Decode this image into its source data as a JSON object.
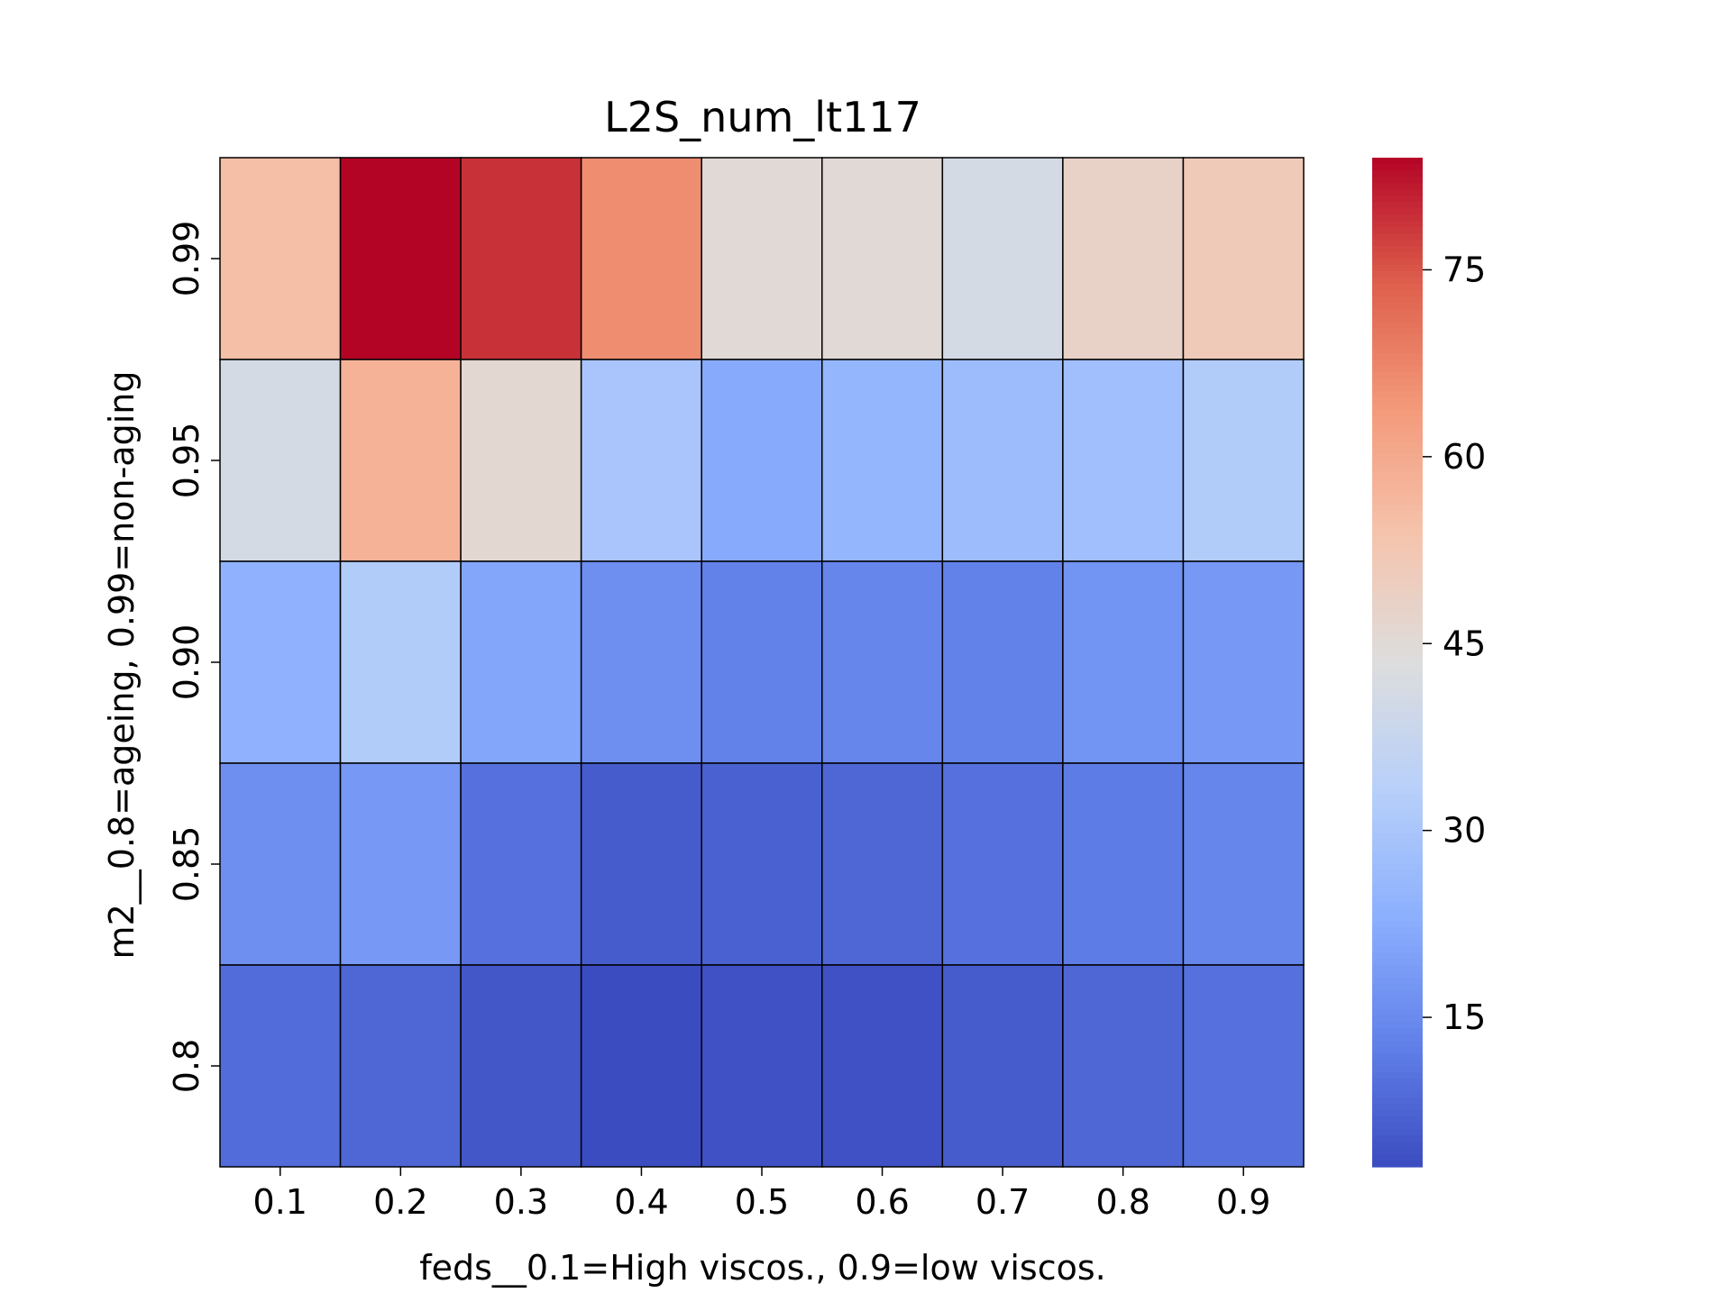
{
  "chart_data": {
    "type": "heatmap",
    "title": "L2S_num_lt117",
    "xlabel": "feds__0.1=High viscos., 0.9=low viscos.",
    "ylabel": "m2__0.8=ageing, 0.99=non-aging",
    "x": [
      "0.1",
      "0.2",
      "0.3",
      "0.4",
      "0.5",
      "0.6",
      "0.7",
      "0.8",
      "0.9"
    ],
    "y": [
      "0.99",
      "0.95",
      "0.90",
      "0.85",
      "0.8"
    ],
    "values": [
      [
        55,
        84,
        79,
        66,
        45,
        45,
        41,
        48,
        51
      ],
      [
        41,
        58,
        46,
        30,
        22,
        25,
        27,
        28,
        32
      ],
      [
        24,
        32,
        21,
        16,
        13,
        14,
        13,
        17,
        18
      ],
      [
        16,
        18,
        10,
        6,
        7,
        8,
        10,
        12,
        14
      ],
      [
        9,
        8,
        5,
        3,
        4,
        4,
        6,
        8,
        10
      ]
    ],
    "colormap": "coolwarm",
    "colorbar": {
      "vmin": 3,
      "vmax": 84,
      "ticks": [
        15,
        30,
        45,
        60,
        75
      ]
    },
    "grid": false,
    "cell_border_color": "#000000"
  }
}
